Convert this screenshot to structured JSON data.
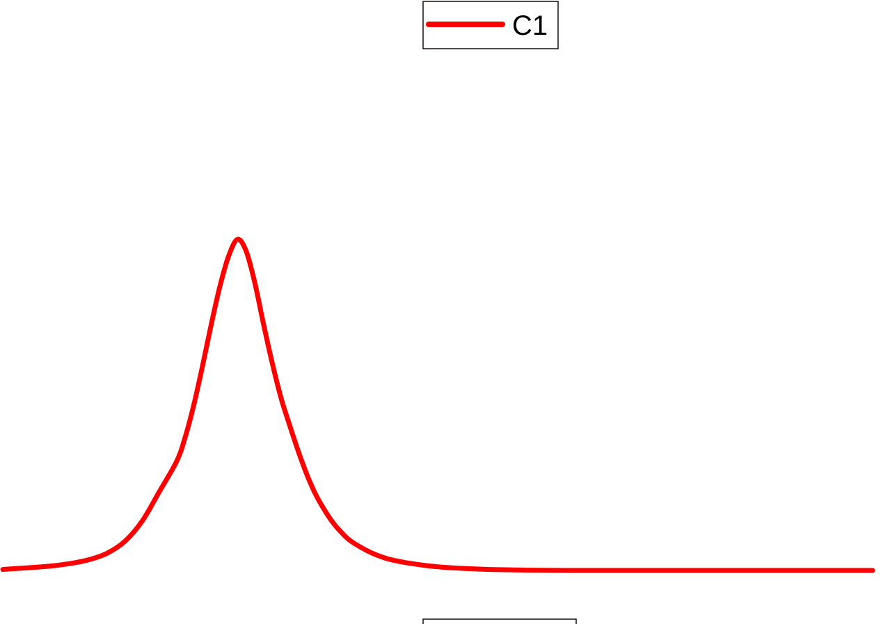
{
  "chart_data": {
    "type": "line",
    "title": "",
    "xlabel": "",
    "ylabel": "",
    "xlim": [
      0,
      1
    ],
    "ylim": [
      0,
      1
    ],
    "grid": false,
    "legend_position": "top-center",
    "series": [
      {
        "name": "C1",
        "color": "#ff0000",
        "x": [
          0.0,
          0.05,
          0.08,
          0.1,
          0.12,
          0.14,
          0.16,
          0.18,
          0.2,
          0.21,
          0.22,
          0.23,
          0.24,
          0.25,
          0.26,
          0.27,
          0.28,
          0.29,
          0.3,
          0.31,
          0.32,
          0.33,
          0.34,
          0.35,
          0.36,
          0.37,
          0.38,
          0.39,
          0.4,
          0.42,
          0.44,
          0.46,
          0.48,
          0.5,
          0.53,
          0.56,
          0.6,
          0.65,
          0.7,
          0.8,
          0.9,
          1.0
        ],
        "y": [
          0.003,
          0.012,
          0.022,
          0.033,
          0.052,
          0.087,
          0.148,
          0.238,
          0.33,
          0.405,
          0.504,
          0.622,
          0.747,
          0.862,
          0.952,
          1.0,
          0.963,
          0.866,
          0.741,
          0.624,
          0.52,
          0.437,
          0.358,
          0.287,
          0.228,
          0.182,
          0.143,
          0.113,
          0.089,
          0.058,
          0.037,
          0.025,
          0.017,
          0.011,
          0.006,
          0.003,
          0.001,
          0.0,
          0.0,
          0.0,
          0.0,
          0.0
        ]
      }
    ]
  }
}
